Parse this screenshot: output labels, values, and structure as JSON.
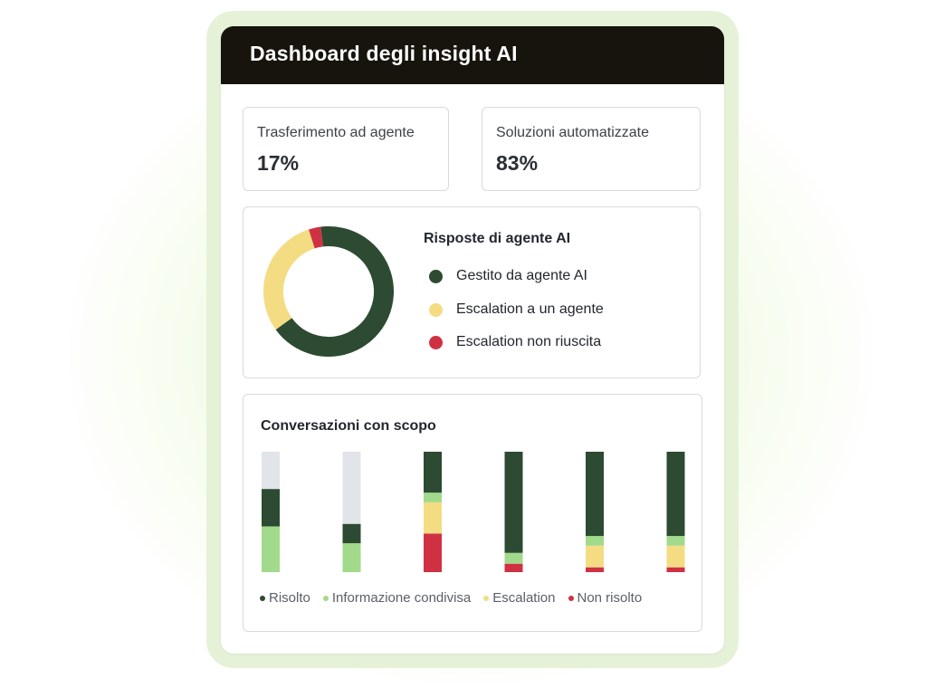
{
  "header": {
    "title": "Dashboard degli insight AI"
  },
  "stats": [
    {
      "label": "Trasferimento ad agente",
      "value": "17%"
    },
    {
      "label": "Soluzioni automatizzate",
      "value": "83%"
    }
  ],
  "donut": {
    "title": "Risposte di agente AI",
    "segments": [
      {
        "label": "Gestito da agente AI",
        "value": 67,
        "color": "#2d4a32"
      },
      {
        "label": "Escalation a un agente",
        "value": 30,
        "color": "#f4dc82"
      },
      {
        "label": "Escalation non riuscita",
        "value": 3,
        "color": "#d03142"
      }
    ]
  },
  "chart_data": {
    "type": "bar",
    "title": "Conversazioni con scopo",
    "stacked": true,
    "categories": [
      "",
      "",
      "",
      "",
      "",
      ""
    ],
    "ylim": [
      0,
      100
    ],
    "series": [
      {
        "name": "Non risolto",
        "color": "#d03142",
        "values": [
          0,
          0,
          32,
          7,
          4,
          4
        ]
      },
      {
        "name": "Escalation",
        "color": "#f4dc82",
        "values": [
          0,
          0,
          26,
          0,
          18,
          18
        ]
      },
      {
        "name": "Informazione condivisa",
        "color": "#a1da8b",
        "values": [
          38,
          24,
          8,
          9,
          8,
          8
        ]
      },
      {
        "name": "Risolto",
        "color": "#2d4a32",
        "values": [
          31,
          16,
          34,
          84,
          70,
          70
        ]
      }
    ],
    "remainder_color": "#e1e4e8",
    "legend": [
      {
        "label": "Risolto",
        "color": "#2d4a32"
      },
      {
        "label": "Informazione condivisa",
        "color": "#a1da8b"
      },
      {
        "label": "Escalation",
        "color": "#f4dc82"
      },
      {
        "label": "Non risolto",
        "color": "#d03142"
      }
    ]
  }
}
